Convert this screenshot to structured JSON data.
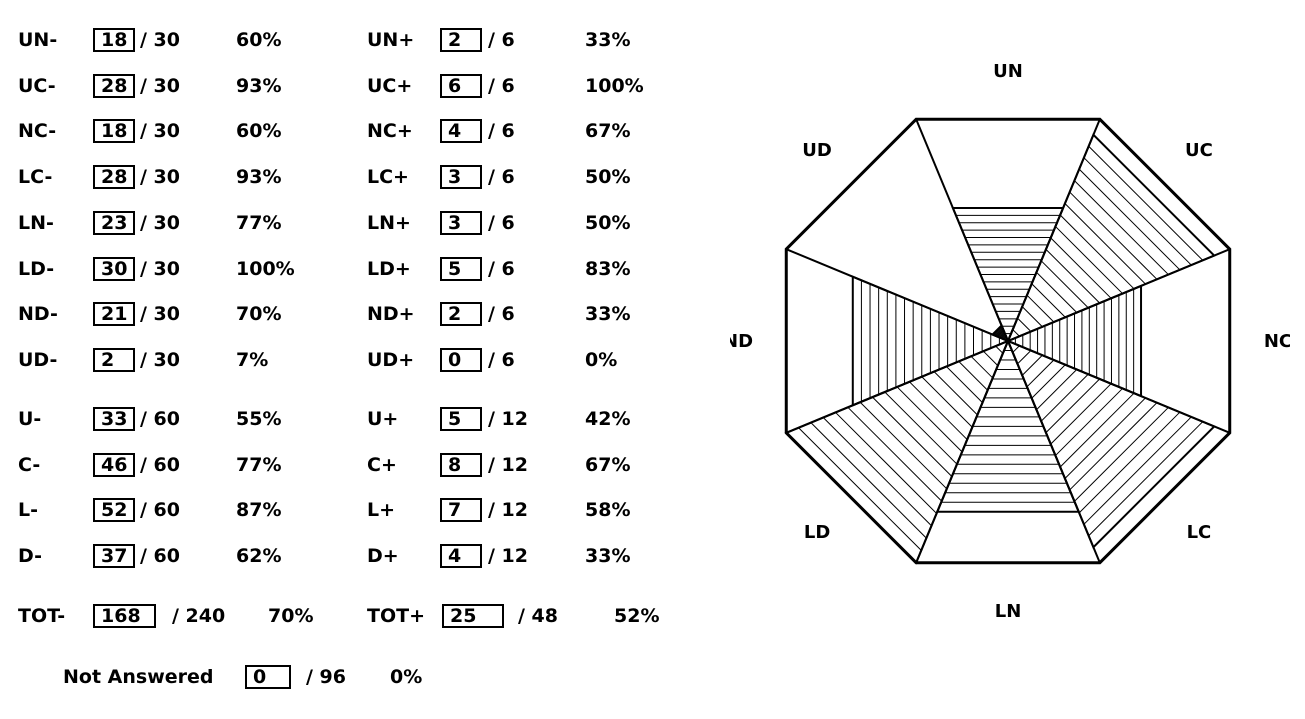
{
  "left_rows": [
    {
      "label": "UN-",
      "value": "18",
      "slash": "/ 30",
      "pct": "60%"
    },
    {
      "label": "UC-",
      "value": "28",
      "slash": "/ 30",
      "pct": "93%"
    },
    {
      "label": "NC-",
      "value": "18",
      "slash": "/ 30",
      "pct": "60%"
    },
    {
      "label": "LC-",
      "value": "28",
      "slash": "/ 30",
      "pct": "93%"
    },
    {
      "label": "LN-",
      "value": "23",
      "slash": "/ 30",
      "pct": "77%"
    },
    {
      "label": "LD-",
      "value": "30",
      "slash": "/ 30",
      "pct": "100%"
    },
    {
      "label": "ND-",
      "value": "21",
      "slash": "/ 30",
      "pct": "70%"
    },
    {
      "label": "UD-",
      "value": "2",
      "slash": "/ 30",
      "pct": "7%"
    },
    {
      "label": "U-",
      "value": "33",
      "slash": "/ 60",
      "pct": "55%"
    },
    {
      "label": "C-",
      "value": "46",
      "slash": "/ 60",
      "pct": "77%"
    },
    {
      "label": "L-",
      "value": "52",
      "slash": "/ 60",
      "pct": "87%"
    },
    {
      "label": "D-",
      "value": "37",
      "slash": "/ 60",
      "pct": "62%"
    }
  ],
  "right_rows": [
    {
      "label": "UN+",
      "value": "2",
      "slash": "/ 6",
      "pct": "33%"
    },
    {
      "label": "UC+",
      "value": "6",
      "slash": "/ 6",
      "pct": "100%"
    },
    {
      "label": "NC+",
      "value": "4",
      "slash": "/ 6",
      "pct": "67%"
    },
    {
      "label": "LC+",
      "value": "3",
      "slash": "/ 6",
      "pct": "50%"
    },
    {
      "label": "LN+",
      "value": "3",
      "slash": "/ 6",
      "pct": "50%"
    },
    {
      "label": "LD+",
      "value": "5",
      "slash": "/ 6",
      "pct": "83%"
    },
    {
      "label": "ND+",
      "value": "2",
      "slash": "/ 6",
      "pct": "33%"
    },
    {
      "label": "UD+",
      "value": "0",
      "slash": "/ 6",
      "pct": "0%"
    },
    {
      "label": "U+",
      "value": "5",
      "slash": "/ 12",
      "pct": "42%"
    },
    {
      "label": "C+",
      "value": "8",
      "slash": "/ 12",
      "pct": "67%"
    },
    {
      "label": "L+",
      "value": "7",
      "slash": "/ 12",
      "pct": "58%"
    },
    {
      "label": "D+",
      "value": "4",
      "slash": "/ 12",
      "pct": "33%"
    }
  ],
  "totals": {
    "minus": {
      "label": "TOT-",
      "value": "168",
      "slash": "/ 240",
      "pct": "70%"
    },
    "plus": {
      "label": "TOT+",
      "value": "25",
      "slash": "/ 48",
      "pct": "52%"
    }
  },
  "not_answered": {
    "label": "Not Answered",
    "value": "0",
    "slash": "/ 96",
    "pct": "0%"
  },
  "chart_data": {
    "type": "radar",
    "axes": [
      "UN",
      "UC",
      "NC",
      "LC",
      "LN",
      "LD",
      "ND",
      "UD"
    ],
    "series": [
      {
        "values": [
          60,
          93,
          60,
          93,
          77,
          100,
          70,
          7
        ]
      }
    ],
    "range": [
      0,
      100
    ]
  }
}
